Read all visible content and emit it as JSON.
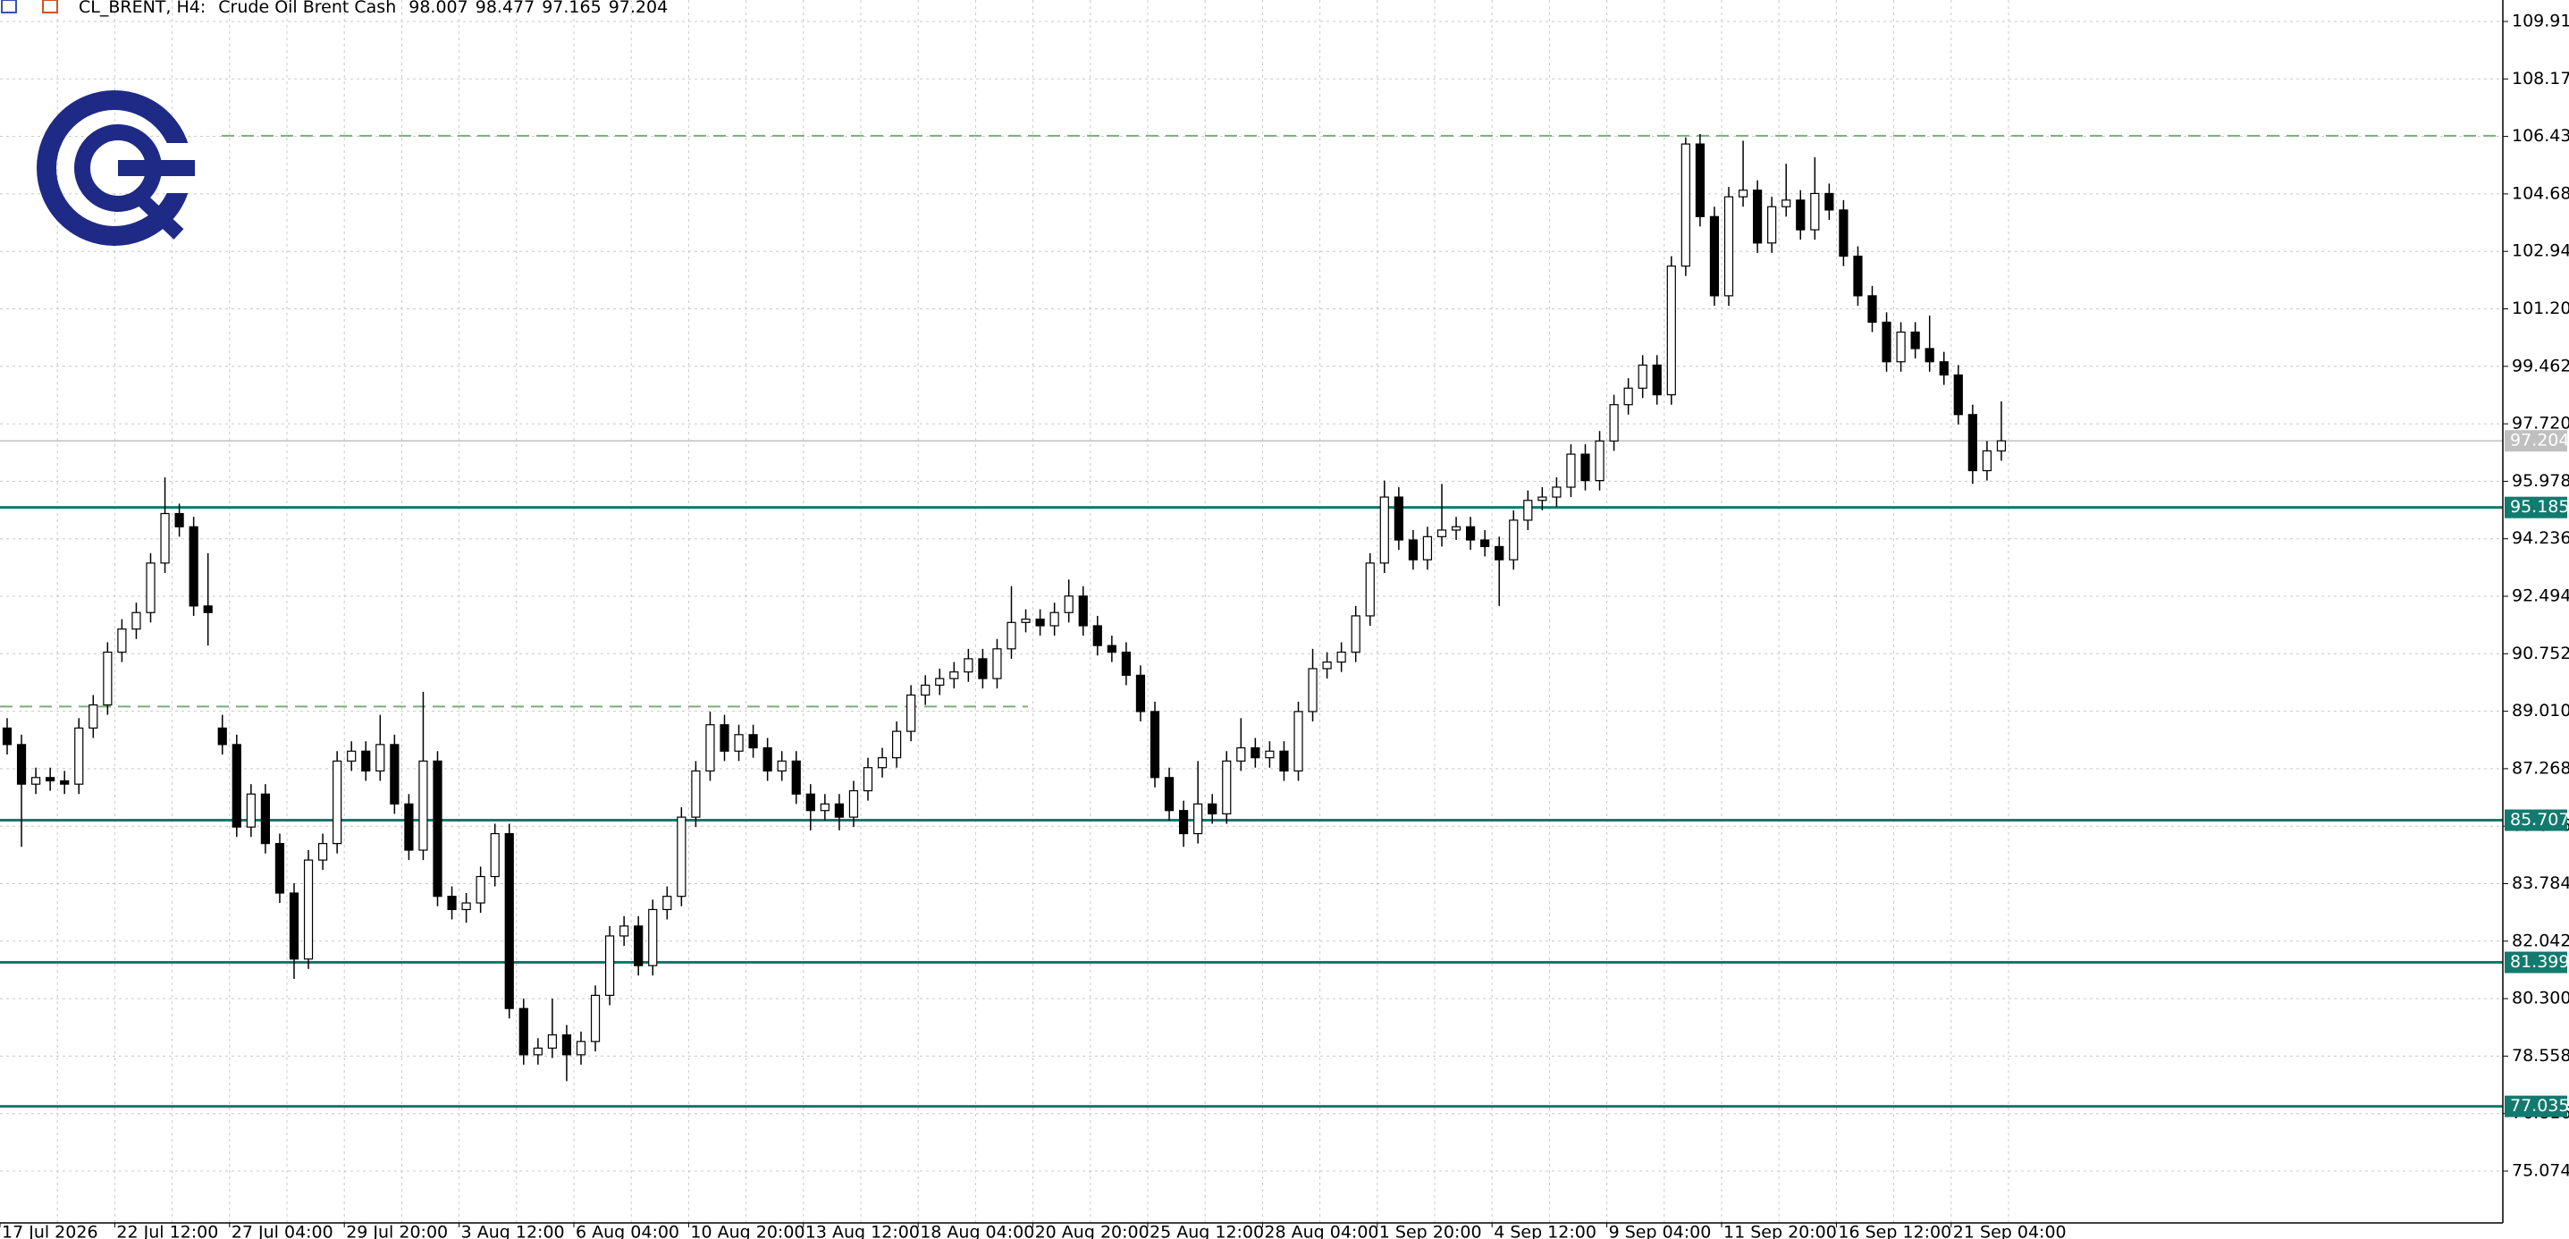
{
  "header": {
    "symbol": "CL_BRENT, H4:",
    "description": "Crude Oil Brent Cash",
    "values": [
      98.007,
      98.477,
      97.165,
      97.204
    ]
  },
  "chart_data": {
    "type": "candlestick",
    "ylim": [
      73.503,
      110.564
    ],
    "yticks": [
      109.914,
      108.172,
      {
        "value": 106.43,
        "label": "106.430"
      },
      104.688,
      102.946,
      101.204,
      99.462,
      {
        "value": 97.72,
        "label": "97.720"
      },
      95.978,
      94.236,
      92.494,
      90.752,
      {
        "value": 89.01,
        "label": "89.010"
      },
      87.268,
      85.526,
      83.784,
      82.042,
      {
        "value": 80.3,
        "label": "80.300"
      },
      78.558,
      76.816,
      75.074
    ],
    "grid": true,
    "x_labels": [
      "17 Jul 2026",
      null,
      "22 Jul 12:00",
      null,
      "27 Jul 04:00",
      null,
      "29 Jul 20:00",
      null,
      "3 Aug 12:00",
      null,
      "6 Aug 04:00",
      null,
      "10 Aug 20:00",
      null,
      "13 Aug 12:00",
      null,
      "18 Aug 04:00",
      null,
      "20 Aug 20:00",
      null,
      "25 Aug 12:00",
      null,
      "28 Aug 04:00",
      null,
      "1 Sep 20:00",
      null,
      "4 Sep 12:00",
      null,
      "9 Sep 04:00",
      null,
      "11 Sep 20:00",
      null,
      "16 Sep 12:00",
      null,
      "21 Sep 04:00",
      null
    ],
    "levels": [
      95.185,
      85.707,
      81.399,
      77.035
    ],
    "level_color": "#127a6e",
    "current_price": 97.204,
    "dashed_levels": [
      106.45,
      89.15
    ],
    "dashed_color": "#7aae7a",
    "candles": [
      [
        88.5,
        88.8,
        87.7,
        88.0
      ],
      [
        88.0,
        88.3,
        84.9,
        86.8
      ],
      [
        86.8,
        87.3,
        86.5,
        87.0
      ],
      [
        87.0,
        87.3,
        86.6,
        86.9
      ],
      [
        86.9,
        87.2,
        86.5,
        86.8
      ],
      [
        86.8,
        88.8,
        86.5,
        88.5
      ],
      [
        88.5,
        89.5,
        88.2,
        89.2
      ],
      [
        89.2,
        91.1,
        88.9,
        90.8
      ],
      [
        90.8,
        91.8,
        90.5,
        91.5
      ],
      [
        91.5,
        92.3,
        91.2,
        92.0
      ],
      [
        92.0,
        93.8,
        91.7,
        93.5
      ],
      [
        93.5,
        96.1,
        93.2,
        95.0
      ],
      [
        95.0,
        95.3,
        94.3,
        94.6
      ],
      [
        94.6,
        94.9,
        91.9,
        92.2
      ],
      [
        92.2,
        93.8,
        91.0,
        92.0
      ],
      [
        88.5,
        88.9,
        87.7,
        88.0
      ],
      [
        88.0,
        88.3,
        85.2,
        85.5
      ],
      [
        85.5,
        86.8,
        85.2,
        86.5
      ],
      [
        86.5,
        86.8,
        84.7,
        85.0
      ],
      [
        85.0,
        85.3,
        83.2,
        83.5
      ],
      [
        83.5,
        83.8,
        80.9,
        81.5
      ],
      [
        81.5,
        84.8,
        81.2,
        84.5
      ],
      [
        84.5,
        85.3,
        84.2,
        85.0
      ],
      [
        85.0,
        87.8,
        84.7,
        87.5
      ],
      [
        87.5,
        88.1,
        87.2,
        87.8
      ],
      [
        87.8,
        88.1,
        86.9,
        87.2
      ],
      [
        87.2,
        88.9,
        86.9,
        88.0
      ],
      [
        88.0,
        88.3,
        85.9,
        86.2
      ],
      [
        86.2,
        86.5,
        84.5,
        84.8
      ],
      [
        84.8,
        89.6,
        84.5,
        87.5
      ],
      [
        87.5,
        87.8,
        83.1,
        83.4
      ],
      [
        83.4,
        83.7,
        82.7,
        83.0
      ],
      [
        83.0,
        83.5,
        82.6,
        83.2
      ],
      [
        83.2,
        84.3,
        82.9,
        84.0
      ],
      [
        84.0,
        85.6,
        83.7,
        85.3
      ],
      [
        85.3,
        85.6,
        79.7,
        80.0
      ],
      [
        80.0,
        80.3,
        78.3,
        78.6
      ],
      [
        78.6,
        79.1,
        78.3,
        78.8
      ],
      [
        78.8,
        80.3,
        78.5,
        79.2
      ],
      [
        79.2,
        79.5,
        77.8,
        78.6
      ],
      [
        78.6,
        79.3,
        78.3,
        79.0
      ],
      [
        79.0,
        80.7,
        78.7,
        80.4
      ],
      [
        80.4,
        82.5,
        80.1,
        82.2
      ],
      [
        82.2,
        82.8,
        81.9,
        82.5
      ],
      [
        82.5,
        82.8,
        81.0,
        81.3
      ],
      [
        81.3,
        83.3,
        81.0,
        83.0
      ],
      [
        83.0,
        83.7,
        82.7,
        83.4
      ],
      [
        83.4,
        86.1,
        83.1,
        85.8
      ],
      [
        85.8,
        87.5,
        85.5,
        87.2
      ],
      [
        87.2,
        89.0,
        86.9,
        88.6
      ],
      [
        88.6,
        88.9,
        87.5,
        87.8
      ],
      [
        87.8,
        88.6,
        87.5,
        88.3
      ],
      [
        88.3,
        88.6,
        87.6,
        87.9
      ],
      [
        87.9,
        88.2,
        86.9,
        87.2
      ],
      [
        87.2,
        87.8,
        86.9,
        87.5
      ],
      [
        87.5,
        87.8,
        86.2,
        86.5
      ],
      [
        86.5,
        86.8,
        85.4,
        86.0
      ],
      [
        86.0,
        86.5,
        85.7,
        86.2
      ],
      [
        86.2,
        86.5,
        85.4,
        85.8
      ],
      [
        85.8,
        86.9,
        85.5,
        86.6
      ],
      [
        86.6,
        87.6,
        86.3,
        87.3
      ],
      [
        87.3,
        87.9,
        87.0,
        87.6
      ],
      [
        87.6,
        88.7,
        87.3,
        88.4
      ],
      [
        88.4,
        89.8,
        88.1,
        89.5
      ],
      [
        89.5,
        90.1,
        89.2,
        89.8
      ],
      [
        89.8,
        90.3,
        89.5,
        90.0
      ],
      [
        90.0,
        90.5,
        89.7,
        90.2
      ],
      [
        90.2,
        90.9,
        89.9,
        90.6
      ],
      [
        90.6,
        90.9,
        89.7,
        90.0
      ],
      [
        90.0,
        91.2,
        89.7,
        90.9
      ],
      [
        90.9,
        92.8,
        90.6,
        91.7
      ],
      [
        91.7,
        92.1,
        91.4,
        91.8
      ],
      [
        91.8,
        92.1,
        91.3,
        91.6
      ],
      [
        91.6,
        92.3,
        91.3,
        92.0
      ],
      [
        92.0,
        93.0,
        91.7,
        92.5
      ],
      [
        92.5,
        92.8,
        91.3,
        91.6
      ],
      [
        91.6,
        91.9,
        90.7,
        91.0
      ],
      [
        91.0,
        91.3,
        90.5,
        90.8
      ],
      [
        90.8,
        91.1,
        89.8,
        90.1
      ],
      [
        90.1,
        90.4,
        88.7,
        89.0
      ],
      [
        89.0,
        89.3,
        86.7,
        87.0
      ],
      [
        87.0,
        87.3,
        85.7,
        86.0
      ],
      [
        86.0,
        86.3,
        84.9,
        85.3
      ],
      [
        85.3,
        87.5,
        85.0,
        86.2
      ],
      [
        86.2,
        86.5,
        85.6,
        85.9
      ],
      [
        85.9,
        87.8,
        85.6,
        87.5
      ],
      [
        87.5,
        88.8,
        87.2,
        87.9
      ],
      [
        87.9,
        88.2,
        87.3,
        87.6
      ],
      [
        87.6,
        88.1,
        87.3,
        87.8
      ],
      [
        87.8,
        88.1,
        86.9,
        87.2
      ],
      [
        87.2,
        89.3,
        86.9,
        89.0
      ],
      [
        89.0,
        90.9,
        88.7,
        90.3
      ],
      [
        90.3,
        90.8,
        90.0,
        90.5
      ],
      [
        90.5,
        91.1,
        90.2,
        90.8
      ],
      [
        90.8,
        92.2,
        90.5,
        91.9
      ],
      [
        91.9,
        93.8,
        91.6,
        93.5
      ],
      [
        93.5,
        96.0,
        93.2,
        95.5
      ],
      [
        95.5,
        95.8,
        93.9,
        94.2
      ],
      [
        94.2,
        94.5,
        93.3,
        93.6
      ],
      [
        93.6,
        94.6,
        93.3,
        94.3
      ],
      [
        94.3,
        95.9,
        94.0,
        94.5
      ],
      [
        94.5,
        94.9,
        94.2,
        94.6
      ],
      [
        94.6,
        94.9,
        93.9,
        94.2
      ],
      [
        94.2,
        94.5,
        93.7,
        94.0
      ],
      [
        94.0,
        94.3,
        92.2,
        93.6
      ],
      [
        93.6,
        95.1,
        93.3,
        94.8
      ],
      [
        94.8,
        95.7,
        94.5,
        95.4
      ],
      [
        95.4,
        95.8,
        95.1,
        95.5
      ],
      [
        95.5,
        96.1,
        95.2,
        95.8
      ],
      [
        95.8,
        97.1,
        95.5,
        96.8
      ],
      [
        96.8,
        97.1,
        95.7,
        96.0
      ],
      [
        96.0,
        97.5,
        95.7,
        97.2
      ],
      [
        97.2,
        98.6,
        96.9,
        98.3
      ],
      [
        98.3,
        99.1,
        98.0,
        98.8
      ],
      [
        98.8,
        99.8,
        98.5,
        99.5
      ],
      [
        99.5,
        99.8,
        98.3,
        98.6
      ],
      [
        98.6,
        102.8,
        98.3,
        102.5
      ],
      [
        102.5,
        106.4,
        102.2,
        106.2
      ],
      [
        106.2,
        106.5,
        103.7,
        104.0
      ],
      [
        104.0,
        104.3,
        101.3,
        101.6
      ],
      [
        101.6,
        104.9,
        101.3,
        104.6
      ],
      [
        104.6,
        106.3,
        104.3,
        104.8
      ],
      [
        104.8,
        105.1,
        102.9,
        103.2
      ],
      [
        103.2,
        104.6,
        102.9,
        104.3
      ],
      [
        104.3,
        105.6,
        104.0,
        104.5
      ],
      [
        104.5,
        104.8,
        103.3,
        103.6
      ],
      [
        103.6,
        105.8,
        103.3,
        104.7
      ],
      [
        104.7,
        105.0,
        103.9,
        104.2
      ],
      [
        104.2,
        104.5,
        102.5,
        102.8
      ],
      [
        102.8,
        103.1,
        101.3,
        101.6
      ],
      [
        101.6,
        101.9,
        100.5,
        100.8
      ],
      [
        100.8,
        101.1,
        99.3,
        99.6
      ],
      [
        99.6,
        100.8,
        99.3,
        100.5
      ],
      [
        100.5,
        100.8,
        99.7,
        100.0
      ],
      [
        100.0,
        101.0,
        99.3,
        99.6
      ],
      [
        99.6,
        99.9,
        98.9,
        99.2
      ],
      [
        99.2,
        99.5,
        97.7,
        98.0
      ],
      [
        98.0,
        98.3,
        95.9,
        96.3
      ],
      [
        96.3,
        97.2,
        96.0,
        96.9
      ],
      [
        96.9,
        98.4,
        96.6,
        97.204
      ]
    ]
  }
}
